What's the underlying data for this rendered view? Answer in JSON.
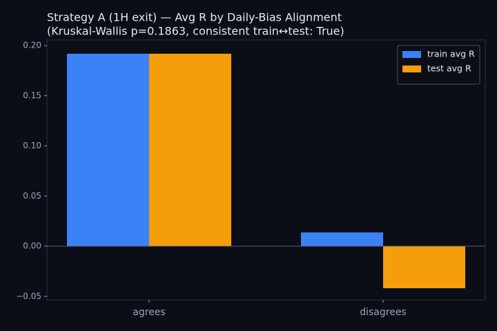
{
  "chart_data": {
    "type": "bar",
    "title": "Strategy A (1H exit) — Avg R by Daily-Bias Alignment",
    "subtitle": "(Kruskal-Wallis p=0.1863, consistent train↔test: True)",
    "categories": [
      "agrees",
      "disagrees"
    ],
    "series": [
      {
        "name": "train avg R",
        "color": "#3b82f6",
        "values": [
          0.1918,
          0.0137
        ]
      },
      {
        "name": "test avg R",
        "color": "#f59e0b",
        "values": [
          0.1918,
          -0.0419
        ]
      }
    ],
    "ylim": [
      -0.0536,
      0.2055
    ],
    "yticks": [
      {
        "value": -0.05,
        "label": "−0.05"
      },
      {
        "value": 0,
        "label": "0.00"
      },
      {
        "value": 0.05,
        "label": "0.05"
      },
      {
        "value": 0.1,
        "label": "0.10"
      },
      {
        "value": 0.15,
        "label": "0.15"
      },
      {
        "value": 0.2,
        "label": "0.20"
      }
    ],
    "legend": "upper right",
    "grid": false
  }
}
